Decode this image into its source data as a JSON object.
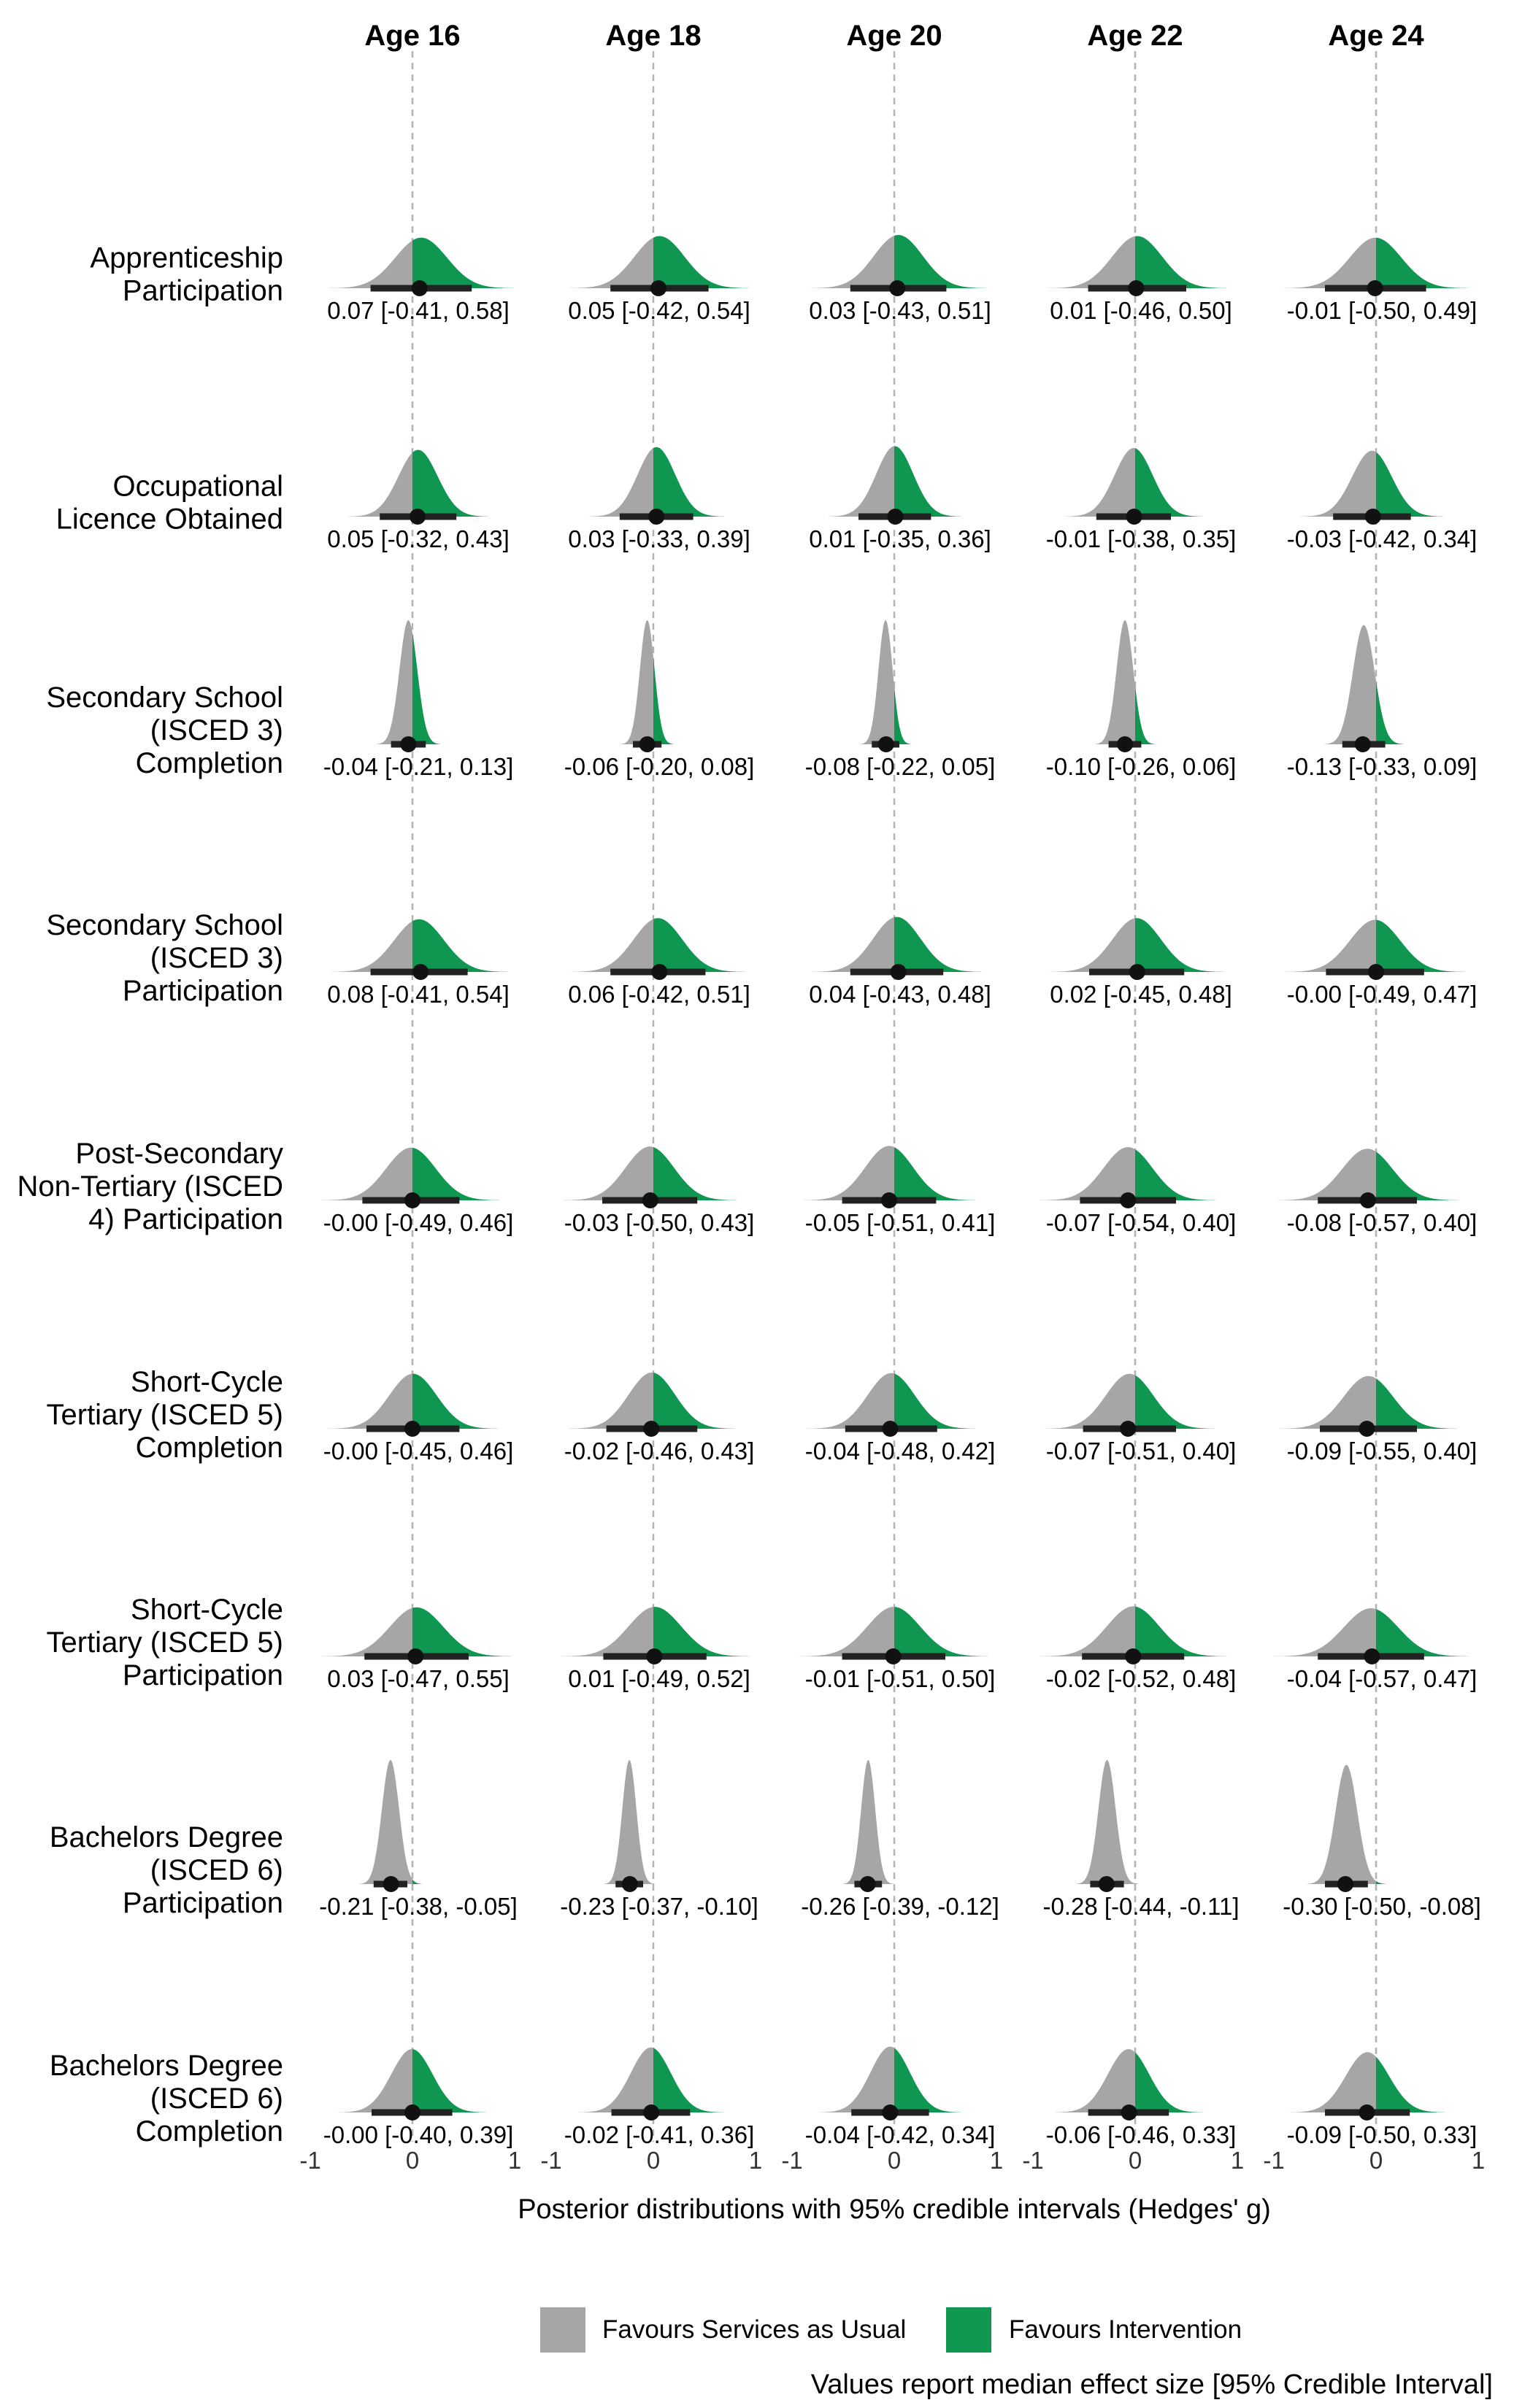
{
  "chart_data": {
    "type": "ridge-interval",
    "columns": [
      "Age 16",
      "Age 18",
      "Age 20",
      "Age 22",
      "Age 24"
    ],
    "rows": [
      {
        "label": [
          "Apprenticeship",
          "Participation"
        ],
        "cells": [
          {
            "median": 0.07,
            "lo": -0.41,
            "hi": 0.58,
            "text": "0.07 [-0.41, 0.58]"
          },
          {
            "median": 0.05,
            "lo": -0.42,
            "hi": 0.54,
            "text": "0.05 [-0.42, 0.54]"
          },
          {
            "median": 0.03,
            "lo": -0.43,
            "hi": 0.51,
            "text": "0.03 [-0.43, 0.51]"
          },
          {
            "median": 0.01,
            "lo": -0.46,
            "hi": 0.5,
            "text": "0.01 [-0.46, 0.50]"
          },
          {
            "median": -0.01,
            "lo": -0.5,
            "hi": 0.49,
            "text": "-0.01 [-0.50, 0.49]"
          }
        ]
      },
      {
        "label": [
          "Occupational",
          "Licence Obtained"
        ],
        "cells": [
          {
            "median": 0.05,
            "lo": -0.32,
            "hi": 0.43,
            "text": "0.05 [-0.32, 0.43]"
          },
          {
            "median": 0.03,
            "lo": -0.33,
            "hi": 0.39,
            "text": "0.03 [-0.33, 0.39]"
          },
          {
            "median": 0.01,
            "lo": -0.35,
            "hi": 0.36,
            "text": "0.01 [-0.35, 0.36]"
          },
          {
            "median": -0.01,
            "lo": -0.38,
            "hi": 0.35,
            "text": "-0.01 [-0.38, 0.35]"
          },
          {
            "median": -0.03,
            "lo": -0.42,
            "hi": 0.34,
            "text": "-0.03 [-0.42, 0.34]"
          }
        ]
      },
      {
        "label": [
          "Secondary School",
          "(ISCED 3)",
          "Completion"
        ],
        "cells": [
          {
            "median": -0.04,
            "lo": -0.21,
            "hi": 0.13,
            "text": "-0.04 [-0.21, 0.13]"
          },
          {
            "median": -0.06,
            "lo": -0.2,
            "hi": 0.08,
            "text": "-0.06 [-0.20, 0.08]"
          },
          {
            "median": -0.08,
            "lo": -0.22,
            "hi": 0.05,
            "text": "-0.08 [-0.22, 0.05]"
          },
          {
            "median": -0.1,
            "lo": -0.26,
            "hi": 0.06,
            "text": "-0.10 [-0.26, 0.06]"
          },
          {
            "median": -0.13,
            "lo": -0.33,
            "hi": 0.09,
            "text": "-0.13 [-0.33, 0.09]"
          }
        ]
      },
      {
        "label": [
          "Secondary School",
          "(ISCED 3)",
          "Participation"
        ],
        "cells": [
          {
            "median": 0.08,
            "lo": -0.41,
            "hi": 0.54,
            "text": "0.08 [-0.41, 0.54]"
          },
          {
            "median": 0.06,
            "lo": -0.42,
            "hi": 0.51,
            "text": "0.06 [-0.42, 0.51]"
          },
          {
            "median": 0.04,
            "lo": -0.43,
            "hi": 0.48,
            "text": "0.04 [-0.43, 0.48]"
          },
          {
            "median": 0.02,
            "lo": -0.45,
            "hi": 0.48,
            "text": "0.02 [-0.45, 0.48]"
          },
          {
            "median": -0.0,
            "lo": -0.49,
            "hi": 0.47,
            "text": "-0.00 [-0.49, 0.47]"
          }
        ]
      },
      {
        "label": [
          "Post-Secondary",
          "Non-Tertiary (ISCED",
          "4) Participation"
        ],
        "cells": [
          {
            "median": -0.0,
            "lo": -0.49,
            "hi": 0.46,
            "text": "-0.00 [-0.49, 0.46]"
          },
          {
            "median": -0.03,
            "lo": -0.5,
            "hi": 0.43,
            "text": "-0.03 [-0.50, 0.43]"
          },
          {
            "median": -0.05,
            "lo": -0.51,
            "hi": 0.41,
            "text": "-0.05 [-0.51, 0.41]"
          },
          {
            "median": -0.07,
            "lo": -0.54,
            "hi": 0.4,
            "text": "-0.07 [-0.54, 0.40]"
          },
          {
            "median": -0.08,
            "lo": -0.57,
            "hi": 0.4,
            "text": "-0.08 [-0.57, 0.40]"
          }
        ]
      },
      {
        "label": [
          "Short-Cycle",
          "Tertiary (ISCED 5)",
          "Completion"
        ],
        "cells": [
          {
            "median": -0.0,
            "lo": -0.45,
            "hi": 0.46,
            "text": "-0.00 [-0.45, 0.46]"
          },
          {
            "median": -0.02,
            "lo": -0.46,
            "hi": 0.43,
            "text": "-0.02 [-0.46, 0.43]"
          },
          {
            "median": -0.04,
            "lo": -0.48,
            "hi": 0.42,
            "text": "-0.04 [-0.48, 0.42]"
          },
          {
            "median": -0.07,
            "lo": -0.51,
            "hi": 0.4,
            "text": "-0.07 [-0.51, 0.40]"
          },
          {
            "median": -0.09,
            "lo": -0.55,
            "hi": 0.4,
            "text": "-0.09 [-0.55, 0.40]"
          }
        ]
      },
      {
        "label": [
          "Short-Cycle",
          "Tertiary (ISCED 5)",
          "Participation"
        ],
        "cells": [
          {
            "median": 0.03,
            "lo": -0.47,
            "hi": 0.55,
            "text": "0.03 [-0.47, 0.55]"
          },
          {
            "median": 0.01,
            "lo": -0.49,
            "hi": 0.52,
            "text": "0.01 [-0.49, 0.52]"
          },
          {
            "median": -0.01,
            "lo": -0.51,
            "hi": 0.5,
            "text": "-0.01 [-0.51, 0.50]"
          },
          {
            "median": -0.02,
            "lo": -0.52,
            "hi": 0.48,
            "text": "-0.02 [-0.52, 0.48]"
          },
          {
            "median": -0.04,
            "lo": -0.57,
            "hi": 0.47,
            "text": "-0.04 [-0.57, 0.47]"
          }
        ]
      },
      {
        "label": [
          "Bachelors Degree",
          "(ISCED 6)",
          "Participation"
        ],
        "cells": [
          {
            "median": -0.21,
            "lo": -0.38,
            "hi": -0.05,
            "text": "-0.21 [-0.38, -0.05]"
          },
          {
            "median": -0.23,
            "lo": -0.37,
            "hi": -0.1,
            "text": "-0.23 [-0.37, -0.10]"
          },
          {
            "median": -0.26,
            "lo": -0.39,
            "hi": -0.12,
            "text": "-0.26 [-0.39, -0.12]"
          },
          {
            "median": -0.28,
            "lo": -0.44,
            "hi": -0.11,
            "text": "-0.28 [-0.44, -0.11]"
          },
          {
            "median": -0.3,
            "lo": -0.5,
            "hi": -0.08,
            "text": "-0.30 [-0.50, -0.08]"
          }
        ]
      },
      {
        "label": [
          "Bachelors Degree",
          "(ISCED 6)",
          "Completion"
        ],
        "cells": [
          {
            "median": -0.0,
            "lo": -0.4,
            "hi": 0.39,
            "text": "-0.00 [-0.40, 0.39]"
          },
          {
            "median": -0.02,
            "lo": -0.41,
            "hi": 0.36,
            "text": "-0.02 [-0.41, 0.36]"
          },
          {
            "median": -0.04,
            "lo": -0.42,
            "hi": 0.34,
            "text": "-0.04 [-0.42, 0.34]"
          },
          {
            "median": -0.06,
            "lo": -0.46,
            "hi": 0.33,
            "text": "-0.06 [-0.46, 0.33]"
          },
          {
            "median": -0.09,
            "lo": -0.5,
            "hi": 0.33,
            "text": "-0.09 [-0.50, 0.33]"
          }
        ]
      }
    ],
    "x_ticks": [
      "-1",
      "0",
      "1"
    ],
    "xlim": [
      -1,
      1
    ],
    "xlabel": "Posterior distributions with 95% credible intervals (Hedges' g)",
    "legend": [
      {
        "label": "Favours Services as Usual",
        "color": "#a6a6a6"
      },
      {
        "label": "Favours Intervention",
        "color": "#0f9650"
      }
    ],
    "caption": "Values report median effect size [95% Credible Interval]",
    "reference_line": 0
  }
}
